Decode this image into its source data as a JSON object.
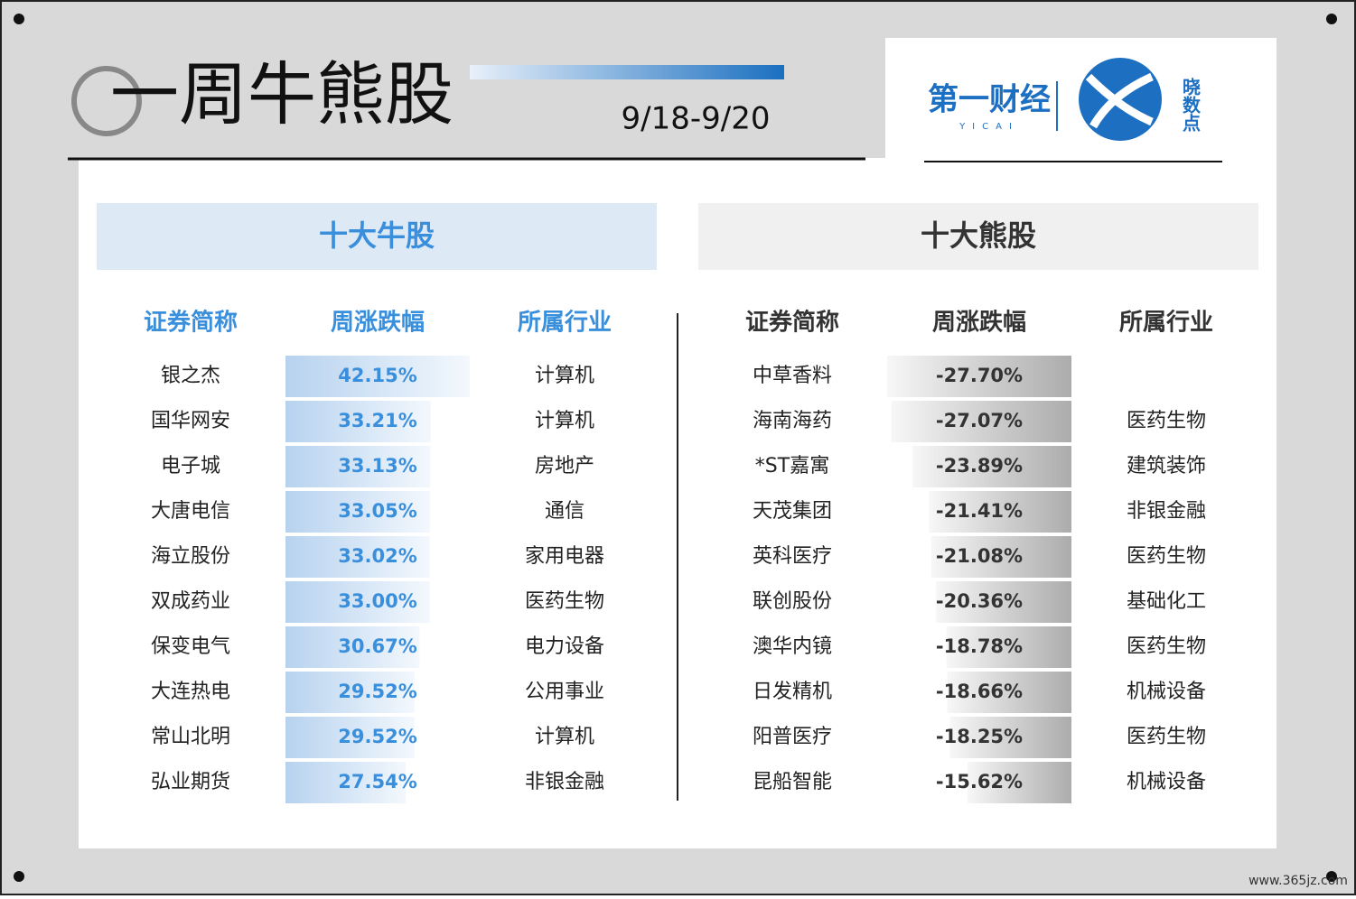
{
  "header": {
    "title": "一周牛熊股",
    "date": "9/18-9/20",
    "logo": {
      "brand": "第一财经",
      "brand_en": "YICAI",
      "product": "晓数点"
    }
  },
  "bull": {
    "title": "十大牛股",
    "columns": [
      "证券简称",
      "周涨跌幅",
      "所属行业"
    ],
    "rows": [
      {
        "name": "银之杰",
        "change": {
          "value": 42.15,
          "label": "42.15%"
        },
        "industry": "计算机"
      },
      {
        "name": "国华网安",
        "change": {
          "value": 33.21,
          "label": "33.21%"
        },
        "industry": "计算机"
      },
      {
        "name": "电子城",
        "change": {
          "value": 33.13,
          "label": "33.13%"
        },
        "industry": "房地产"
      },
      {
        "name": "大唐电信",
        "change": {
          "value": 33.05,
          "label": "33.05%"
        },
        "industry": "通信"
      },
      {
        "name": "海立股份",
        "change": {
          "value": 33.02,
          "label": "33.02%"
        },
        "industry": "家用电器"
      },
      {
        "name": "双成药业",
        "change": {
          "value": 33.0,
          "label": "33.00%"
        },
        "industry": "医药生物"
      },
      {
        "name": "保变电气",
        "change": {
          "value": 30.67,
          "label": "30.67%"
        },
        "industry": "电力设备"
      },
      {
        "name": "大连热电",
        "change": {
          "value": 29.52,
          "label": "29.52%"
        },
        "industry": "公用事业"
      },
      {
        "name": "常山北明",
        "change": {
          "value": 29.52,
          "label": "29.52%"
        },
        "industry": "计算机"
      },
      {
        "name": "弘业期货",
        "change": {
          "value": 27.54,
          "label": "27.54%"
        },
        "industry": "非银金融"
      }
    ]
  },
  "bear": {
    "title": "十大熊股",
    "columns": [
      "证券简称",
      "周涨跌幅",
      "所属行业"
    ],
    "rows": [
      {
        "name": "中草香料",
        "change": {
          "value": -27.7,
          "label": "-27.70%"
        },
        "industry": null
      },
      {
        "name": "海南海药",
        "change": {
          "value": -27.07,
          "label": "-27.07%"
        },
        "industry": "医药生物"
      },
      {
        "name": "*ST嘉寓",
        "change": {
          "value": -23.89,
          "label": "-23.89%"
        },
        "industry": "建筑装饰"
      },
      {
        "name": "天茂集团",
        "change": {
          "value": -21.41,
          "label": "-21.41%"
        },
        "industry": "非银金融"
      },
      {
        "name": "英科医疗",
        "change": {
          "value": -21.08,
          "label": "-21.08%"
        },
        "industry": "医药生物"
      },
      {
        "name": "联创股份",
        "change": {
          "value": -20.36,
          "label": "-20.36%"
        },
        "industry": "基础化工"
      },
      {
        "name": "澳华内镜",
        "change": {
          "value": -18.78,
          "label": "-18.78%"
        },
        "industry": "医药生物"
      },
      {
        "name": "日发精机",
        "change": {
          "value": -18.66,
          "label": "-18.66%"
        },
        "industry": "机械设备"
      },
      {
        "name": "阳普医疗",
        "change": {
          "value": -18.25,
          "label": "-18.25%"
        },
        "industry": "医药生物"
      },
      {
        "name": "昆船智能",
        "change": {
          "value": -15.62,
          "label": "-15.62%"
        },
        "industry": "机械设备"
      }
    ]
  },
  "watermark": "www.365jz.com"
}
